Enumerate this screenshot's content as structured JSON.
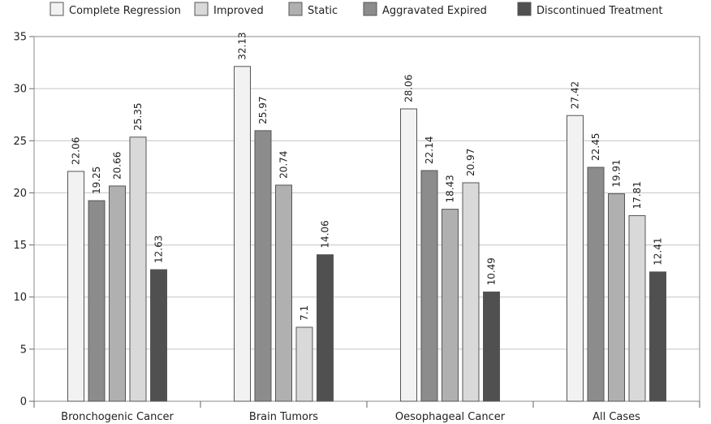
{
  "chart_data": {
    "type": "bar",
    "title": "",
    "xlabel": "",
    "ylabel": "",
    "ylim": [
      0,
      35
    ],
    "yticks": [
      0,
      5,
      10,
      15,
      20,
      25,
      30,
      35
    ],
    "grid": true,
    "legend_position": "top",
    "categories": [
      "Bronchogenic Cancer",
      "Brain Tumors",
      "Oesophageal Cancer",
      "All Cases"
    ],
    "series": [
      {
        "name": "Complete Regression",
        "color": "#f2f2f2",
        "values": [
          22.06,
          32.13,
          28.06,
          27.42
        ],
        "labels": [
          "22.06",
          "32.13",
          "28.06",
          "27.42"
        ]
      },
      {
        "name": "Aggravated Expired",
        "color": "#8c8c8c",
        "values": [
          19.25,
          25.97,
          22.14,
          22.45
        ],
        "labels": [
          "19.25",
          "25.97",
          "22.14",
          "22.45"
        ]
      },
      {
        "name": "Static",
        "color": "#b0b0b0",
        "values": [
          20.66,
          20.74,
          18.43,
          19.91
        ],
        "labels": [
          "20.66",
          "20.74",
          "18.43",
          "19.91"
        ]
      },
      {
        "name": "Improved",
        "color": "#d9d9d9",
        "values": [
          25.35,
          7.1,
          20.97,
          17.81
        ],
        "labels": [
          "25.35",
          "7.1",
          "20.97",
          "17.81"
        ]
      },
      {
        "name": "Discontinued Treatment",
        "color": "#505050",
        "values": [
          12.63,
          14.06,
          10.49,
          12.41
        ],
        "labels": [
          "12.63",
          "14.06",
          "10.49",
          "12.41"
        ]
      }
    ],
    "legend": [
      {
        "name": "Complete Regression",
        "color": "#f2f2f2"
      },
      {
        "name": "Improved",
        "color": "#d9d9d9"
      },
      {
        "name": "Static",
        "color": "#b0b0b0"
      },
      {
        "name": "Aggravated Expired",
        "color": "#8c8c8c"
      },
      {
        "name": "Discontinued Treatment",
        "color": "#505050"
      }
    ]
  }
}
